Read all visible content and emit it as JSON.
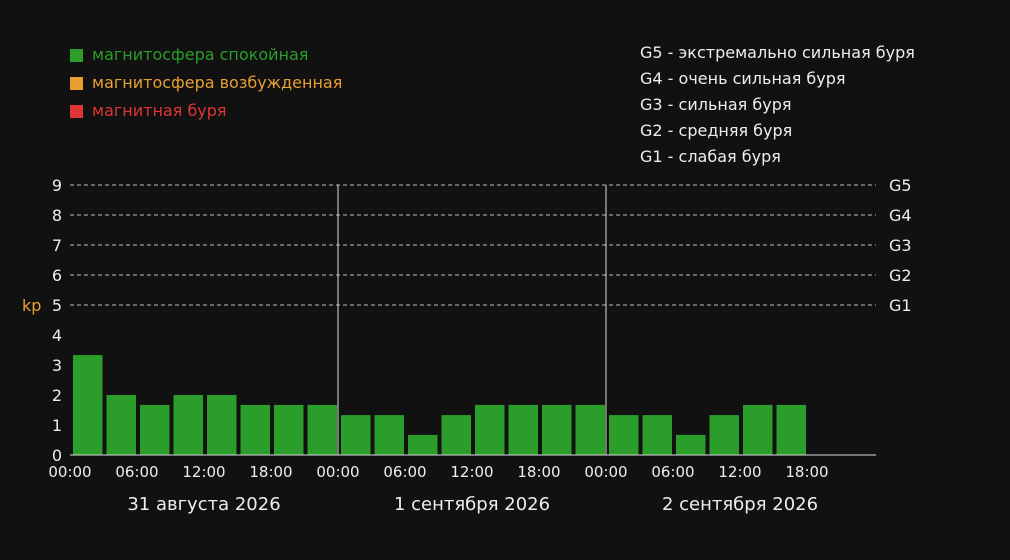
{
  "legend": {
    "items": [
      {
        "label": "магнитосфера спокойная",
        "color": "#2a9d2a"
      },
      {
        "label": "магнитосфера возбужденная",
        "color": "#e8a030"
      },
      {
        "label": "магнитная буря",
        "color": "#e03535"
      }
    ]
  },
  "storm_legend": [
    "G5 - экстремально сильная буря",
    "G4 - очень сильная буря",
    "G3 - сильная буря",
    "G2 - средняя буря",
    "G1 - слабая буря"
  ],
  "chart_data": {
    "type": "bar",
    "ylabel": "kp",
    "ylim": [
      0,
      9
    ],
    "y_ticks": [
      "0",
      "1",
      "2",
      "3",
      "4",
      "5",
      "6",
      "7",
      "8",
      "9"
    ],
    "storm_levels": [
      {
        "label": "G1",
        "value": 5
      },
      {
        "label": "G2",
        "value": 6
      },
      {
        "label": "G3",
        "value": 7
      },
      {
        "label": "G4",
        "value": 8
      },
      {
        "label": "G5",
        "value": 9
      }
    ],
    "bars_per_day": 8,
    "x_ticks": [
      "00:00",
      "06:00",
      "12:00",
      "18:00",
      "00:00",
      "06:00",
      "12:00",
      "18:00",
      "00:00",
      "06:00",
      "12:00",
      "18:00"
    ],
    "days": [
      "31 августа 2026",
      "1 сентября 2026",
      "2 сентября 2026"
    ],
    "values": [
      3.33,
      2.0,
      1.67,
      2.0,
      2.0,
      1.67,
      1.67,
      1.67,
      1.33,
      1.33,
      0.67,
      1.33,
      1.67,
      1.67,
      1.67,
      1.67,
      1.33,
      1.33,
      0.67,
      1.33,
      1.67,
      1.67
    ],
    "bar_color": "#2a9d2a",
    "grid_color": "#bbbbbb",
    "text_color": "#eeeeee",
    "ylabel_color": "#e8a030"
  }
}
